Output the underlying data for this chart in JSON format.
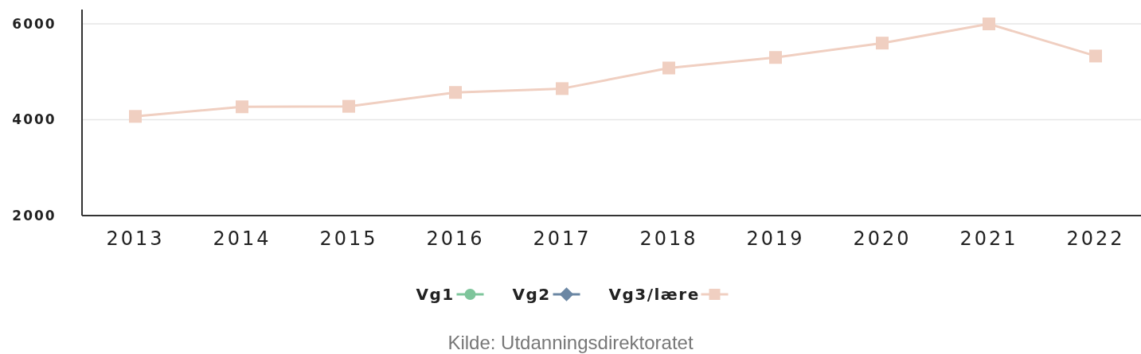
{
  "chart_data": {
    "type": "line",
    "categories": [
      "2013",
      "2014",
      "2015",
      "2016",
      "2017",
      "2018",
      "2019",
      "2020",
      "2021",
      "2022"
    ],
    "series": [
      {
        "name": "Vg1",
        "color": "#7ec59b",
        "marker": "circle",
        "values": [
          null,
          null,
          null,
          null,
          null,
          null,
          null,
          null,
          null,
          null
        ]
      },
      {
        "name": "Vg2",
        "color": "#6b87a4",
        "marker": "diamond",
        "values": [
          null,
          null,
          null,
          null,
          null,
          null,
          null,
          null,
          null,
          null
        ]
      },
      {
        "name": "Vg3/lære",
        "color": "#f0cfc1",
        "marker": "square",
        "values": [
          4070,
          4270,
          4280,
          4570,
          4650,
          5080,
          5300,
          5600,
          6000,
          5330
        ]
      }
    ],
    "ylim": [
      2000,
      6300
    ],
    "yticks": [
      2000,
      4000,
      6000
    ],
    "grid": "y",
    "legend": "bottom",
    "line_style": "solid",
    "annotations": [
      "Kilde: Utdanningsdirektoratet"
    ]
  }
}
